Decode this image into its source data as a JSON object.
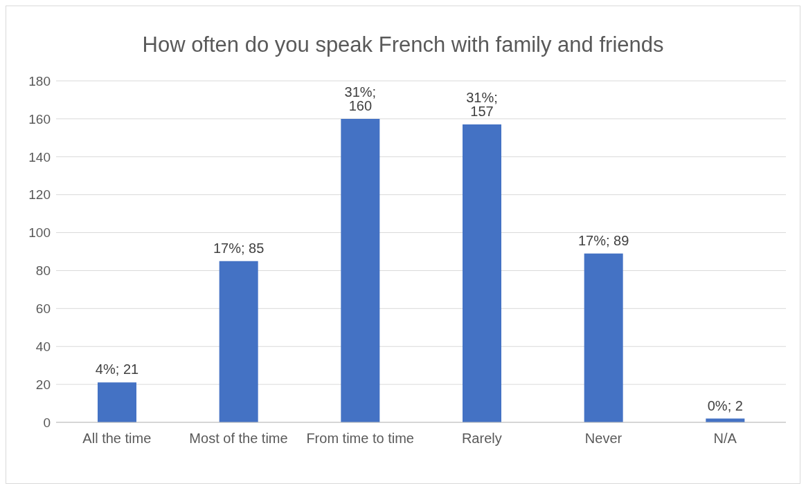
{
  "chart_data": {
    "type": "bar",
    "title": "How often do you speak French with family and friends",
    "categories": [
      "All the time",
      "Most of the time",
      "From time to time",
      "Rarely",
      "Never",
      "N/A"
    ],
    "values": [
      21,
      85,
      160,
      157,
      89,
      2
    ],
    "value_labels": [
      "4%; 21",
      "17%; 85",
      "31%; 160",
      "31%; 157",
      "17%; 89",
      "0%; 2"
    ],
    "color": "#4472c4",
    "ylim": [
      0,
      180
    ],
    "yticks": [
      0,
      20,
      40,
      60,
      80,
      100,
      120,
      140,
      160,
      180
    ],
    "grid": "y"
  }
}
